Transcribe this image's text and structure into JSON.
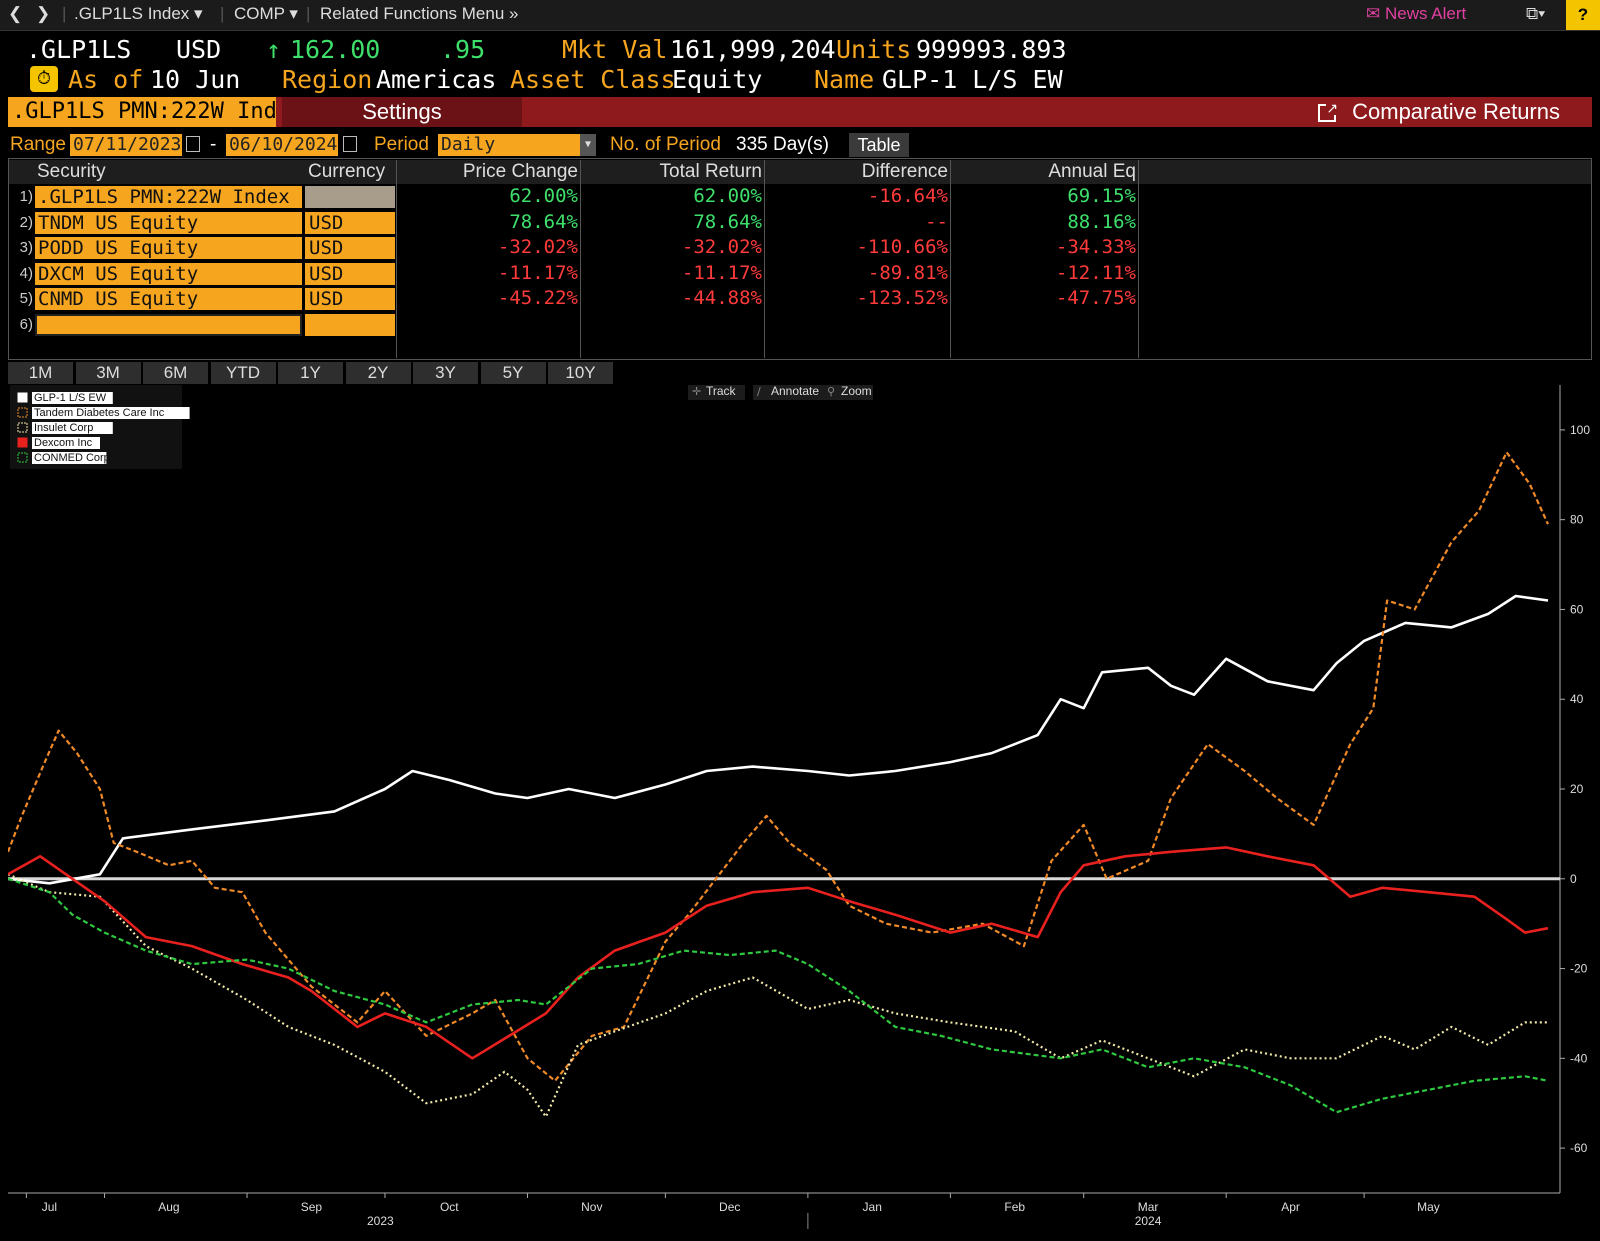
{
  "nav": {
    "ticker": ".GLP1LS Index",
    "function": "COMP",
    "related": "Related Functions Menu",
    "news_alert": "News Alert",
    "help": "?"
  },
  "header": {
    "ticker": ".GLP1LS",
    "currency": "USD",
    "price": "162.00",
    "change": ".95",
    "mkt_val_label": "Mkt Val",
    "mkt_val": "161,999,204.8",
    "units_label": "Units",
    "units": "999993.893",
    "as_of_label": "As of",
    "as_of": "10 Jun",
    "region_label": "Region",
    "region": "Americas",
    "asset_class_label": "Asset Class",
    "asset_class": "Equity",
    "name_label": "Name",
    "name": "GLP-1 L/S EW"
  },
  "toolbar": {
    "security": ".GLP1LS PMN:222W Index",
    "settings": "Settings",
    "comparative_returns": "Comparative Returns"
  },
  "range": {
    "label": "Range",
    "start": "07/11/2023",
    "dash": "-",
    "end": "06/10/2024",
    "period_label": "Period",
    "period": "Daily",
    "num_period_label": "No. of Period",
    "num_period": "335 Day(s)",
    "table_button": "Table"
  },
  "table": {
    "headers": [
      "Security",
      "Currency",
      "Price Change",
      "Total Return",
      "Difference",
      "Annual Eq"
    ],
    "rows": [
      {
        "n": "1)",
        "security": ".GLP1LS PMN:222W Index",
        "currency": "",
        "price_change": "62.00%",
        "total_return": "62.00%",
        "difference": "-16.64%",
        "annual_eq": "69.15%"
      },
      {
        "n": "2)",
        "security": "TNDM US Equity",
        "currency": "USD",
        "price_change": "78.64%",
        "total_return": "78.64%",
        "difference": "--",
        "annual_eq": "88.16%"
      },
      {
        "n": "3)",
        "security": "PODD US Equity",
        "currency": "USD",
        "price_change": "-32.02%",
        "total_return": "-32.02%",
        "difference": "-110.66%",
        "annual_eq": "-34.33%"
      },
      {
        "n": "4)",
        "security": "DXCM US Equity",
        "currency": "USD",
        "price_change": "-11.17%",
        "total_return": "-11.17%",
        "difference": "-89.81%",
        "annual_eq": "-12.11%"
      },
      {
        "n": "5)",
        "security": "CNMD US Equity",
        "currency": "USD",
        "price_change": "-45.22%",
        "total_return": "-44.88%",
        "difference": "-123.52%",
        "annual_eq": "-47.75%"
      },
      {
        "n": "6)",
        "security": "",
        "currency": "",
        "price_change": "",
        "total_return": "",
        "difference": "",
        "annual_eq": ""
      }
    ]
  },
  "periods": [
    "1M",
    "3M",
    "6M",
    "YTD",
    "1Y",
    "2Y",
    "3Y",
    "5Y",
    "10Y"
  ],
  "chart_tools": [
    "Track",
    "Annotate",
    "Zoom"
  ],
  "colors": {
    "orange": "#f6a51e",
    "green_text": "#3ee06b",
    "red_text": "#ff3b3b",
    "red_bar": "#8e1a1e"
  },
  "chart_data": {
    "type": "line",
    "x_tick_labels": [
      "Jul",
      "Aug",
      "Sep",
      "Oct",
      "Nov",
      "Dec",
      "Jan",
      "Feb",
      "Mar",
      "Apr",
      "May"
    ],
    "x_years": [
      "2023",
      "2024"
    ],
    "y_ticks": [
      100,
      80,
      60,
      40,
      20,
      0,
      -20,
      -40,
      -60
    ],
    "ylim": [
      -70,
      110
    ],
    "xlim": [
      "2023-07-11",
      "2024-06-10"
    ],
    "zero_line": true,
    "grid": false,
    "legend_position": "top-left",
    "series": [
      {
        "name": "GLP-1 L/S EW",
        "color": "#ffffff",
        "style": "solid",
        "points": [
          [
            "2023-07-11",
            0
          ],
          [
            "2023-07-20",
            -1
          ],
          [
            "2023-07-31",
            1
          ],
          [
            "2023-08-05",
            9
          ],
          [
            "2023-08-20",
            11
          ],
          [
            "2023-09-05",
            13
          ],
          [
            "2023-09-20",
            15
          ],
          [
            "2023-10-01",
            20
          ],
          [
            "2023-10-07",
            24
          ],
          [
            "2023-10-15",
            22
          ],
          [
            "2023-10-25",
            19
          ],
          [
            "2023-11-01",
            18
          ],
          [
            "2023-11-10",
            20
          ],
          [
            "2023-11-20",
            18
          ],
          [
            "2023-12-01",
            21
          ],
          [
            "2023-12-10",
            24
          ],
          [
            "2023-12-20",
            25
          ],
          [
            "2024-01-01",
            24
          ],
          [
            "2024-01-10",
            23
          ],
          [
            "2024-01-20",
            24
          ],
          [
            "2024-02-01",
            26
          ],
          [
            "2024-02-10",
            28
          ],
          [
            "2024-02-20",
            32
          ],
          [
            "2024-02-25",
            40
          ],
          [
            "2024-03-01",
            38
          ],
          [
            "2024-03-05",
            46
          ],
          [
            "2024-03-15",
            47
          ],
          [
            "2024-03-20",
            43
          ],
          [
            "2024-03-25",
            41
          ],
          [
            "2024-04-01",
            49
          ],
          [
            "2024-04-10",
            44
          ],
          [
            "2024-04-20",
            42
          ],
          [
            "2024-04-25",
            48
          ],
          [
            "2024-05-01",
            53
          ],
          [
            "2024-05-10",
            57
          ],
          [
            "2024-05-20",
            56
          ],
          [
            "2024-05-28",
            59
          ],
          [
            "2024-06-03",
            63
          ],
          [
            "2024-06-10",
            62
          ]
        ]
      },
      {
        "name": "Tandem Diabetes Care Inc",
        "color": "#f08a28",
        "style": "dash",
        "points": [
          [
            "2023-07-11",
            6
          ],
          [
            "2023-07-14",
            14
          ],
          [
            "2023-07-19",
            26
          ],
          [
            "2023-07-22",
            33
          ],
          [
            "2023-07-26",
            28
          ],
          [
            "2023-07-31",
            20
          ],
          [
            "2023-08-03",
            8
          ],
          [
            "2023-08-08",
            6
          ],
          [
            "2023-08-15",
            3
          ],
          [
            "2023-08-20",
            4
          ],
          [
            "2023-08-25",
            -2
          ],
          [
            "2023-08-31",
            -3
          ],
          [
            "2023-09-05",
            -12
          ],
          [
            "2023-09-10",
            -18
          ],
          [
            "2023-09-15",
            -24
          ],
          [
            "2023-09-25",
            -32
          ],
          [
            "2023-10-01",
            -25
          ],
          [
            "2023-10-10",
            -35
          ],
          [
            "2023-10-20",
            -30
          ],
          [
            "2023-10-25",
            -27
          ],
          [
            "2023-11-01",
            -40
          ],
          [
            "2023-11-07",
            -45
          ],
          [
            "2023-11-15",
            -35
          ],
          [
            "2023-11-22",
            -33
          ],
          [
            "2023-12-01",
            -14
          ],
          [
            "2023-12-06",
            -8
          ],
          [
            "2023-12-12",
            0
          ],
          [
            "2023-12-18",
            8
          ],
          [
            "2023-12-23",
            14
          ],
          [
            "2023-12-28",
            8
          ],
          [
            "2024-01-05",
            2
          ],
          [
            "2024-01-10",
            -6
          ],
          [
            "2024-01-18",
            -10
          ],
          [
            "2024-01-28",
            -12
          ],
          [
            "2024-02-08",
            -10
          ],
          [
            "2024-02-17",
            -15
          ],
          [
            "2024-02-23",
            4
          ],
          [
            "2024-03-01",
            12
          ],
          [
            "2024-03-06",
            0
          ],
          [
            "2024-03-15",
            4
          ],
          [
            "2024-03-20",
            18
          ],
          [
            "2024-03-28",
            30
          ],
          [
            "2024-04-05",
            24
          ],
          [
            "2024-04-12",
            18
          ],
          [
            "2024-04-20",
            12
          ],
          [
            "2024-04-28",
            30
          ],
          [
            "2024-05-03",
            38
          ],
          [
            "2024-05-06",
            62
          ],
          [
            "2024-05-12",
            60
          ],
          [
            "2024-05-20",
            75
          ],
          [
            "2024-05-26",
            82
          ],
          [
            "2024-06-01",
            95
          ],
          [
            "2024-06-06",
            88
          ],
          [
            "2024-06-10",
            79
          ]
        ]
      },
      {
        "name": "Insulet Corp",
        "color": "#f2e8a8",
        "style": "dot",
        "points": [
          [
            "2023-07-11",
            1
          ],
          [
            "2023-07-20",
            -3
          ],
          [
            "2023-07-31",
            -4
          ],
          [
            "2023-08-10",
            -15
          ],
          [
            "2023-08-20",
            -20
          ],
          [
            "2023-09-01",
            -27
          ],
          [
            "2023-09-10",
            -33
          ],
          [
            "2023-09-20",
            -37
          ],
          [
            "2023-10-01",
            -43
          ],
          [
            "2023-10-10",
            -50
          ],
          [
            "2023-10-20",
            -48
          ],
          [
            "2023-10-27",
            -43
          ],
          [
            "2023-11-01",
            -47
          ],
          [
            "2023-11-05",
            -53
          ],
          [
            "2023-11-12",
            -37
          ],
          [
            "2023-11-20",
            -34
          ],
          [
            "2023-12-01",
            -30
          ],
          [
            "2023-12-10",
            -25
          ],
          [
            "2023-12-20",
            -22
          ],
          [
            "2024-01-01",
            -29
          ],
          [
            "2024-01-10",
            -27
          ],
          [
            "2024-01-20",
            -30
          ],
          [
            "2024-02-01",
            -32
          ],
          [
            "2024-02-15",
            -34
          ],
          [
            "2024-02-25",
            -40
          ],
          [
            "2024-03-05",
            -36
          ],
          [
            "2024-03-15",
            -40
          ],
          [
            "2024-03-25",
            -44
          ],
          [
            "2024-04-05",
            -38
          ],
          [
            "2024-04-15",
            -40
          ],
          [
            "2024-04-25",
            -40
          ],
          [
            "2024-05-05",
            -35
          ],
          [
            "2024-05-12",
            -38
          ],
          [
            "2024-05-20",
            -33
          ],
          [
            "2024-05-28",
            -37
          ],
          [
            "2024-06-05",
            -32
          ],
          [
            "2024-06-10",
            -32
          ]
        ]
      },
      {
        "name": "Dexcom Inc",
        "color": "#e8211f",
        "style": "solid",
        "points": [
          [
            "2023-07-11",
            1
          ],
          [
            "2023-07-18",
            5
          ],
          [
            "2023-07-25",
            0
          ],
          [
            "2023-08-01",
            -5
          ],
          [
            "2023-08-10",
            -13
          ],
          [
            "2023-08-20",
            -15
          ],
          [
            "2023-08-31",
            -19
          ],
          [
            "2023-09-10",
            -22
          ],
          [
            "2023-09-15",
            -25
          ],
          [
            "2023-09-25",
            -33
          ],
          [
            "2023-10-01",
            -30
          ],
          [
            "2023-10-10",
            -33
          ],
          [
            "2023-10-20",
            -40
          ],
          [
            "2023-10-28",
            -35
          ],
          [
            "2023-11-05",
            -30
          ],
          [
            "2023-11-12",
            -22
          ],
          [
            "2023-11-20",
            -16
          ],
          [
            "2023-12-01",
            -12
          ],
          [
            "2023-12-10",
            -6
          ],
          [
            "2023-12-20",
            -3
          ],
          [
            "2024-01-01",
            -2
          ],
          [
            "2024-01-10",
            -5
          ],
          [
            "2024-01-20",
            -8
          ],
          [
            "2024-02-01",
            -12
          ],
          [
            "2024-02-10",
            -10
          ],
          [
            "2024-02-20",
            -13
          ],
          [
            "2024-02-25",
            -3
          ],
          [
            "2024-03-01",
            3
          ],
          [
            "2024-03-10",
            5
          ],
          [
            "2024-03-20",
            6
          ],
          [
            "2024-04-01",
            7
          ],
          [
            "2024-04-10",
            5
          ],
          [
            "2024-04-20",
            3
          ],
          [
            "2024-04-28",
            -4
          ],
          [
            "2024-05-05",
            -2
          ],
          [
            "2024-05-15",
            -3
          ],
          [
            "2024-05-25",
            -4
          ],
          [
            "2024-06-01",
            -9
          ],
          [
            "2024-06-05",
            -12
          ],
          [
            "2024-06-10",
            -11
          ]
        ]
      },
      {
        "name": "CONMED Corp",
        "color": "#2ec940",
        "style": "dash",
        "points": [
          [
            "2023-07-11",
            0
          ],
          [
            "2023-07-20",
            -3
          ],
          [
            "2023-07-25",
            -8
          ],
          [
            "2023-08-01",
            -12
          ],
          [
            "2023-08-10",
            -16
          ],
          [
            "2023-08-20",
            -19
          ],
          [
            "2023-09-01",
            -18
          ],
          [
            "2023-09-10",
            -20
          ],
          [
            "2023-09-20",
            -25
          ],
          [
            "2023-10-01",
            -28
          ],
          [
            "2023-10-10",
            -32
          ],
          [
            "2023-10-20",
            -28
          ],
          [
            "2023-10-30",
            -27
          ],
          [
            "2023-11-05",
            -28
          ],
          [
            "2023-11-15",
            -20
          ],
          [
            "2023-11-25",
            -19
          ],
          [
            "2023-12-05",
            -16
          ],
          [
            "2023-12-15",
            -17
          ],
          [
            "2023-12-25",
            -16
          ],
          [
            "2024-01-01",
            -19
          ],
          [
            "2024-01-10",
            -25
          ],
          [
            "2024-01-20",
            -33
          ],
          [
            "2024-01-30",
            -35
          ],
          [
            "2024-02-10",
            -38
          ],
          [
            "2024-02-25",
            -40
          ],
          [
            "2024-03-05",
            -38
          ],
          [
            "2024-03-15",
            -42
          ],
          [
            "2024-03-25",
            -40
          ],
          [
            "2024-04-05",
            -42
          ],
          [
            "2024-04-15",
            -46
          ],
          [
            "2024-04-25",
            -52
          ],
          [
            "2024-05-05",
            -49
          ],
          [
            "2024-05-15",
            -47
          ],
          [
            "2024-05-25",
            -45
          ],
          [
            "2024-06-05",
            -44
          ],
          [
            "2024-06-10",
            -45
          ]
        ]
      }
    ]
  }
}
